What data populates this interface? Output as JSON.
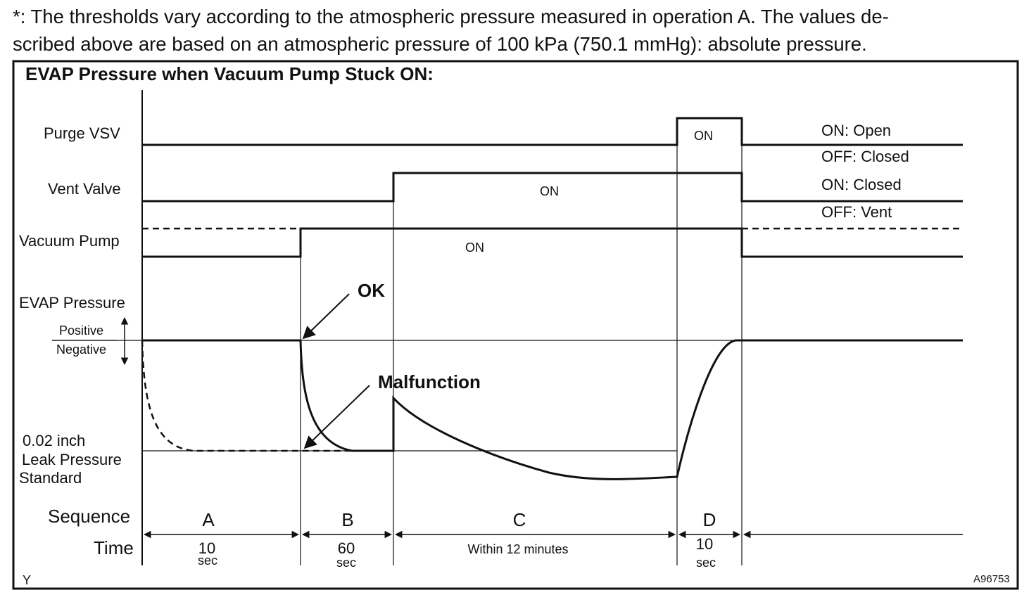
{
  "note": {
    "line1": "*: The thresholds vary according to the atmospheric pressure measured in operation A. The values de-",
    "line2": "scribed above are based on an atmospheric pressure of 100 kPa (750.1 mmHg): absolute pressure."
  },
  "diagram": {
    "title": "EVAP Pressure when Vacuum Pump Stuck ON:",
    "rows": {
      "purge_vsv": "Purge VSV",
      "vent_valve": "Vent Valve",
      "vacuum_pump": "Vacuum Pump",
      "evap_pressure": "EVAP Pressure",
      "positive": "Positive",
      "negative": "Negative",
      "leak_line1": "0.02 inch",
      "leak_line2": "Leak Pressure",
      "leak_line3": "Standard",
      "sequence": "Sequence",
      "time": "Time"
    },
    "legend": {
      "purge_on": "ON: Open",
      "purge_off": "OFF: Closed",
      "vent_on": "ON: Closed",
      "vent_off": "OFF: Vent"
    },
    "on_labels": {
      "purge": "ON",
      "vent": "ON",
      "pump": "ON"
    },
    "callouts": {
      "ok": "OK",
      "malfunction": "Malfunction"
    },
    "phases": [
      {
        "letter": "A",
        "time1": "10",
        "time2": "sec"
      },
      {
        "letter": "B",
        "time1": "60",
        "time2": "sec"
      },
      {
        "letter": "C",
        "time1": "Within 12 minutes",
        "time2": ""
      },
      {
        "letter": "D",
        "time1": "10",
        "time2": "sec"
      }
    ],
    "corner_left": "Y",
    "figure_id": "A96753"
  }
}
